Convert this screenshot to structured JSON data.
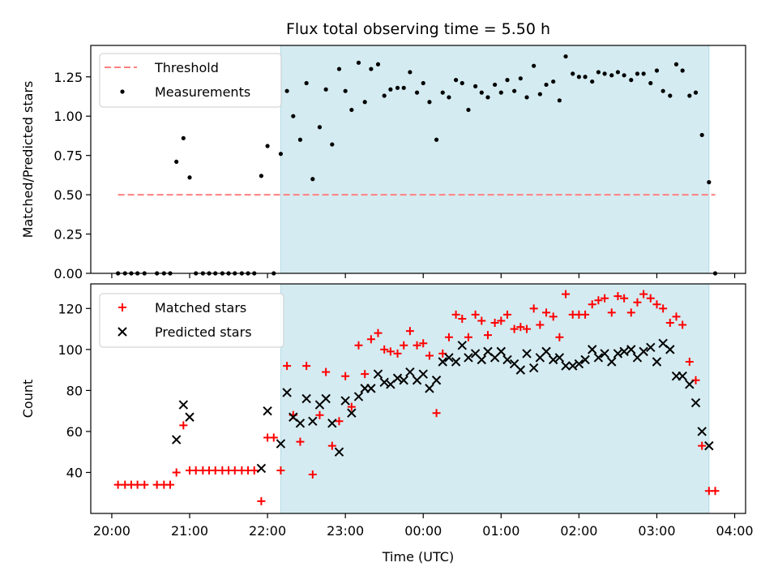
{
  "chart_data": [
    {
      "type": "scatter",
      "title": "Flux total observing time = 5.50 h",
      "xlabel": "",
      "ylabel": "Matched/Predicted stars",
      "xlim": [
        19.73,
        28.14
      ],
      "ylim": [
        0,
        1.45
      ],
      "yticks": [
        0.0,
        0.25,
        0.5,
        0.75,
        1.0,
        1.25
      ],
      "ytick_labels": [
        "0.00",
        "0.25",
        "0.50",
        "0.75",
        "1.00",
        "1.25"
      ],
      "shaded_range": [
        22.17,
        27.67
      ],
      "shaded_color": "#d4ebf1",
      "legend_position": "top-left",
      "series": [
        {
          "name": "Threshold",
          "kind": "dashed-line",
          "color": "#ff8080",
          "x": [
            20.08,
            27.75
          ],
          "y": [
            0.5,
            0.5
          ]
        },
        {
          "name": "Measurements",
          "kind": "dot",
          "color": "#000000",
          "x": [
            20.08,
            20.17,
            20.25,
            20.33,
            20.42,
            20.58,
            20.67,
            20.75,
            20.83,
            20.92,
            21.0,
            21.08,
            21.17,
            21.25,
            21.33,
            21.42,
            21.5,
            21.58,
            21.67,
            21.75,
            21.83,
            21.92,
            22.0,
            22.08,
            22.17,
            22.25,
            22.33,
            22.42,
            22.5,
            22.58,
            22.67,
            22.75,
            22.83,
            22.92,
            23.0,
            23.08,
            23.17,
            23.25,
            23.33,
            23.42,
            23.5,
            23.58,
            23.67,
            23.75,
            23.83,
            23.92,
            24.0,
            24.08,
            24.17,
            24.25,
            24.33,
            24.42,
            24.5,
            24.58,
            24.67,
            24.75,
            24.83,
            24.92,
            25.0,
            25.08,
            25.17,
            25.25,
            25.33,
            25.42,
            25.5,
            25.58,
            25.67,
            25.75,
            25.83,
            25.92,
            26.0,
            26.08,
            26.17,
            26.25,
            26.33,
            26.42,
            26.5,
            26.58,
            26.67,
            26.75,
            26.83,
            26.92,
            27.0,
            27.08,
            27.17,
            27.25,
            27.33,
            27.42,
            27.5,
            27.58,
            27.67,
            27.75
          ],
          "y": [
            0.0,
            0.0,
            0.0,
            0.0,
            0.0,
            0.0,
            0.0,
            0.0,
            0.71,
            0.86,
            0.61,
            0.0,
            0.0,
            0.0,
            0.0,
            0.0,
            0.0,
            0.0,
            0.0,
            0.0,
            0.0,
            0.62,
            0.81,
            0.0,
            0.76,
            1.16,
            1.0,
            0.85,
            1.21,
            0.6,
            0.93,
            1.17,
            0.82,
            1.3,
            1.16,
            1.04,
            1.34,
            1.09,
            1.3,
            1.33,
            1.13,
            1.17,
            1.18,
            1.18,
            1.28,
            1.15,
            1.21,
            1.09,
            0.85,
            1.15,
            1.12,
            1.23,
            1.21,
            1.04,
            1.19,
            1.15,
            1.12,
            1.2,
            1.15,
            1.23,
            1.16,
            1.24,
            1.12,
            1.32,
            1.14,
            1.2,
            1.22,
            1.1,
            1.38,
            1.27,
            1.25,
            1.25,
            1.22,
            1.28,
            1.27,
            1.26,
            1.28,
            1.26,
            1.23,
            1.27,
            1.27,
            1.21,
            1.29,
            1.16,
            1.13,
            1.33,
            1.29,
            1.13,
            1.15,
            0.88,
            0.58,
            0.0
          ]
        }
      ]
    },
    {
      "type": "scatter",
      "title": "",
      "xlabel": "Time (UTC)",
      "ylabel": "Count",
      "xlim": [
        19.73,
        28.14
      ],
      "ylim": [
        20,
        132
      ],
      "yticks": [
        40,
        60,
        80,
        100,
        120
      ],
      "ytick_labels": [
        "40",
        "60",
        "80",
        "100",
        "120"
      ],
      "xticks": [
        20,
        21,
        22,
        23,
        24,
        25,
        26,
        27,
        28
      ],
      "xtick_labels": [
        "20:00",
        "21:00",
        "22:00",
        "23:00",
        "00:00",
        "01:00",
        "02:00",
        "03:00",
        "04:00"
      ],
      "shaded_range": [
        22.17,
        27.67
      ],
      "shaded_color": "#d4ebf1",
      "legend_position": "top-left",
      "series": [
        {
          "name": "Matched stars",
          "kind": "plus",
          "color": "#ff0000",
          "x": [
            20.08,
            20.17,
            20.25,
            20.33,
            20.42,
            20.58,
            20.67,
            20.75,
            20.83,
            20.92,
            21.0,
            21.08,
            21.17,
            21.25,
            21.33,
            21.42,
            21.5,
            21.58,
            21.67,
            21.75,
            21.83,
            21.92,
            22.0,
            22.08,
            22.17,
            22.25,
            22.33,
            22.42,
            22.5,
            22.58,
            22.67,
            22.75,
            22.83,
            22.92,
            23.0,
            23.08,
            23.17,
            23.25,
            23.33,
            23.42,
            23.5,
            23.58,
            23.67,
            23.75,
            23.83,
            23.92,
            24.0,
            24.08,
            24.17,
            24.25,
            24.33,
            24.42,
            24.5,
            24.58,
            24.67,
            24.75,
            24.83,
            24.92,
            25.0,
            25.08,
            25.17,
            25.25,
            25.33,
            25.42,
            25.5,
            25.58,
            25.67,
            25.75,
            25.83,
            25.92,
            26.0,
            26.08,
            26.17,
            26.25,
            26.33,
            26.42,
            26.5,
            26.58,
            26.67,
            26.75,
            26.83,
            26.92,
            27.0,
            27.08,
            27.17,
            27.25,
            27.33,
            27.42,
            27.5,
            27.58,
            27.67,
            27.75
          ],
          "y": [
            34,
            34,
            34,
            34,
            34,
            34,
            34,
            34,
            40,
            63,
            41,
            41,
            41,
            41,
            41,
            41,
            41,
            41,
            41,
            41,
            41,
            26,
            57,
            57,
            41,
            92,
            68,
            55,
            92,
            39,
            68,
            89,
            53,
            65,
            87,
            72,
            102,
            88,
            105,
            108,
            100,
            99,
            98,
            102,
            109,
            102,
            103,
            97,
            69,
            98,
            106,
            117,
            115,
            106,
            117,
            114,
            107,
            113,
            114,
            117,
            110,
            111,
            110,
            120,
            112,
            118,
            116,
            106,
            127,
            117,
            117,
            117,
            122,
            124,
            125,
            118,
            126,
            125,
            118,
            123,
            127,
            125,
            122,
            120,
            113,
            116,
            112,
            94,
            85,
            53,
            31,
            31
          ]
        },
        {
          "name": "Predicted stars",
          "kind": "cross",
          "color": "#000000",
          "x": [
            20.83,
            20.92,
            21.0,
            21.92,
            22.0,
            22.17,
            22.25,
            22.33,
            22.42,
            22.5,
            22.58,
            22.67,
            22.75,
            22.83,
            22.92,
            23.0,
            23.08,
            23.17,
            23.25,
            23.33,
            23.42,
            23.5,
            23.58,
            23.67,
            23.75,
            23.83,
            23.92,
            24.0,
            24.08,
            24.17,
            24.25,
            24.33,
            24.42,
            24.5,
            24.58,
            24.67,
            24.75,
            24.83,
            24.92,
            25.0,
            25.08,
            25.17,
            25.25,
            25.33,
            25.42,
            25.5,
            25.58,
            25.67,
            25.75,
            25.83,
            25.92,
            26.0,
            26.08,
            26.17,
            26.25,
            26.33,
            26.42,
            26.5,
            26.58,
            26.67,
            26.75,
            26.83,
            26.92,
            27.0,
            27.08,
            27.17,
            27.25,
            27.33,
            27.42,
            27.5,
            27.58,
            27.67
          ],
          "y": [
            56,
            73,
            67,
            42,
            70,
            54,
            79,
            67,
            64,
            76,
            65,
            73,
            76,
            64,
            50,
            75,
            69,
            77,
            81,
            81,
            88,
            84,
            83,
            86,
            85,
            89,
            85,
            88,
            81,
            85,
            94,
            96,
            94,
            102,
            96,
            98,
            95,
            99,
            96,
            99,
            95,
            93,
            90,
            98,
            91,
            96,
            99,
            95,
            96,
            92,
            92,
            93,
            95,
            100,
            96,
            98,
            94,
            98,
            99,
            100,
            96,
            99,
            101,
            94,
            103,
            100,
            87,
            87,
            83,
            74,
            60,
            53
          ]
        }
      ]
    }
  ]
}
